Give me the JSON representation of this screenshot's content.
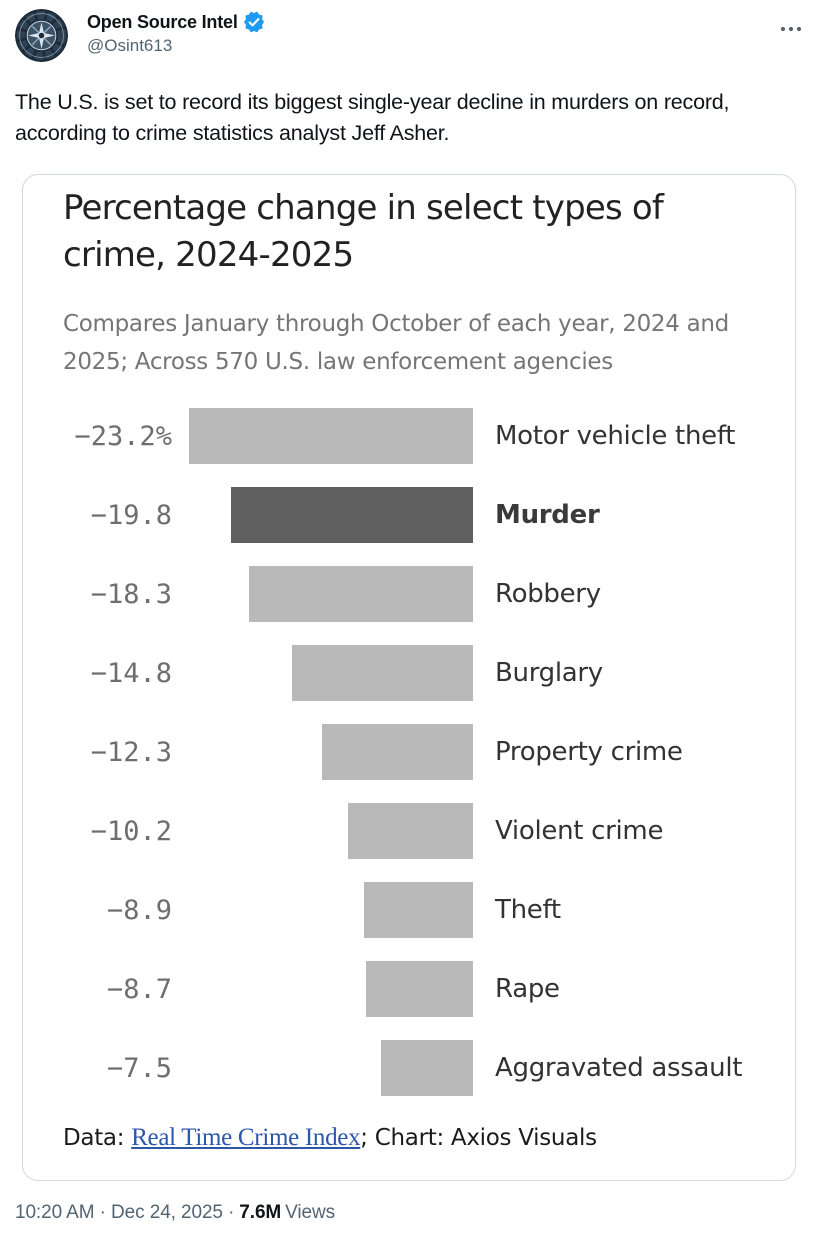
{
  "tweet": {
    "author": {
      "name": "Open Source Intel",
      "handle": "@Osint613"
    },
    "text": "The U.S. is set to record its biggest single-year decline in murders on record, according to crime statistics analyst Jeff Asher.",
    "timestamp": {
      "time_and_date": "10:20 AM · Dec 24, 2025 ·",
      "views_count": "7.6M",
      "views_label": "Views"
    }
  },
  "chart_data": {
    "type": "bar",
    "orientation": "horizontal",
    "title": "Percentage change in select types of crime, 2024-2025",
    "subtitle": "Compares January through October of each year, 2024 and 2025; Across 570 U.S. law enforcement agencies",
    "categories": [
      "Motor vehicle theft",
      "Murder",
      "Robbery",
      "Burglary",
      "Property crime",
      "Violent crime",
      "Theft",
      "Rape",
      "Aggravated assault"
    ],
    "values": [
      -23.2,
      -19.8,
      -18.3,
      -14.8,
      -12.3,
      -10.2,
      -8.9,
      -8.7,
      -7.5
    ],
    "value_labels": [
      "−23.2%",
      "−19.8",
      "−18.3",
      "−14.8",
      "−12.3",
      "−10.2",
      "−8.9",
      "−8.7",
      "−7.5"
    ],
    "highlight_index": 1,
    "xlim": [
      -23.2,
      0
    ],
    "grid": false,
    "legend": "none",
    "bar_color": "#b9b9b9",
    "highlight_color": "#5f5f5f",
    "footer": {
      "prefix": "Data: ",
      "link_text": "Real Time Crime Index",
      "suffix": "; Chart: Axios Visuals"
    }
  },
  "colors": {
    "badge_blue": "#1d9bf0",
    "link_blue": "#2b57a7",
    "muted_gray": "#536471",
    "text_dark": "#0f1419"
  }
}
